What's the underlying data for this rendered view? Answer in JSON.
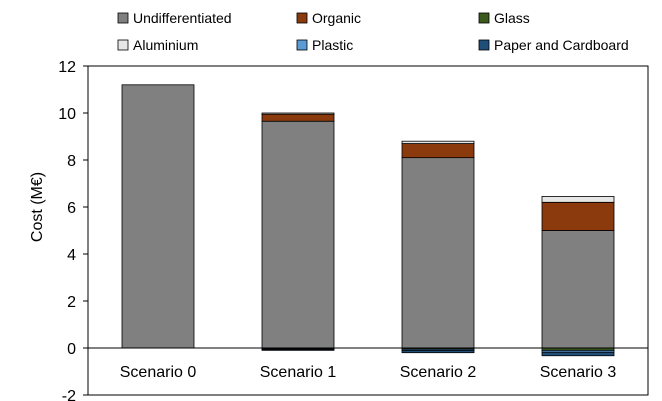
{
  "chart_data": {
    "type": "bar",
    "stacked": true,
    "categories": [
      "Scenario 0",
      "Scenario 1",
      "Scenario 2",
      "Scenario 3"
    ],
    "ylabel": "Cost (M€)",
    "xlabel": "",
    "ylim": [
      -2,
      12
    ],
    "yticks": [
      -2,
      0,
      2,
      4,
      6,
      8,
      10,
      12
    ],
    "grid": false,
    "legend_position": "top",
    "series": [
      {
        "name": "Undifferentiated",
        "color": "#808080",
        "values": [
          11.2,
          9.65,
          8.1,
          5.0
        ]
      },
      {
        "name": "Organic",
        "color": "#8B3A0E",
        "values": [
          0,
          0.3,
          0.6,
          1.2
        ]
      },
      {
        "name": "Glass",
        "color": "#3A5A1E",
        "values": [
          0,
          -0.03,
          -0.05,
          -0.1
        ]
      },
      {
        "name": "Aluminium",
        "color": "#E6E6E6",
        "values": [
          0,
          0.05,
          0.1,
          0.25
        ]
      },
      {
        "name": "Plastic",
        "color": "#5B9BD5",
        "values": [
          0,
          -0.03,
          -0.05,
          -0.08
        ]
      },
      {
        "name": "Paper and Cardboard",
        "color": "#1F4E79",
        "values": [
          0,
          -0.04,
          -0.1,
          -0.15
        ]
      }
    ]
  }
}
